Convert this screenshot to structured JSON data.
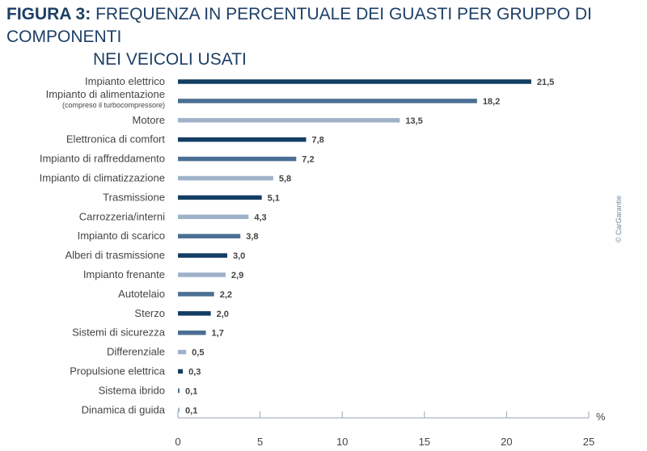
{
  "title": {
    "figure_label": "FIGURA 3:",
    "text_line1": "FREQUENZA IN PERCENTUALE DEI GUASTI PER GRUPPO DI COMPONENTI",
    "text_line2": "NEI VEICOLI USATI"
  },
  "credit": "© CarGarantie",
  "colors": {
    "dark": "#133d63",
    "medium": "#4b6f93",
    "light": "#9fb2c9",
    "text": "#444444",
    "axis": "#9aa6b2"
  },
  "chart_data": {
    "type": "bar",
    "orientation": "horizontal",
    "categories": [
      "Impianto elettrico",
      "Impianto di alimentazione",
      "Motore",
      "Elettronica di comfort",
      "Impianto di raffreddamento",
      "Impianto di climatizzazione",
      "Trasmissione",
      "Carrozzeria/interni",
      "Impianto di scarico",
      "Alberi di trasmissione",
      "Impianto frenante",
      "Autotelaio",
      "Sterzo",
      "Sistemi di sicurezza",
      "Differenziale",
      "Propulsione elettrica",
      "Sistema ibrido",
      "Dinamica di guida"
    ],
    "category_notes": [
      "",
      "(compreso il turbocompressore)",
      "",
      "",
      "",
      "",
      "",
      "",
      "",
      "",
      "",
      "",
      "",
      "",
      "",
      "",
      "",
      ""
    ],
    "values": [
      21.5,
      18.2,
      13.5,
      7.8,
      7.2,
      5.8,
      5.1,
      4.3,
      3.8,
      3.0,
      2.9,
      2.2,
      2.0,
      1.7,
      0.5,
      0.3,
      0.1,
      0.1
    ],
    "value_labels": [
      "21,5",
      "18,2",
      "13,5",
      "7,8",
      "7,2",
      "5,8",
      "5,1",
      "4,3",
      "3,8",
      "3,0",
      "2,9",
      "2,2",
      "2,0",
      "1,7",
      "0,5",
      "0,3",
      "0,1",
      "0,1"
    ],
    "bar_shades": [
      "dark",
      "medium",
      "light",
      "dark",
      "medium",
      "light",
      "dark",
      "light",
      "medium",
      "dark",
      "light",
      "medium",
      "dark",
      "medium",
      "light",
      "dark",
      "medium",
      "light"
    ],
    "xlim": [
      0,
      25
    ],
    "xticks": [
      0,
      5,
      10,
      15,
      20,
      25
    ],
    "xlabel": "%",
    "grid": false
  }
}
